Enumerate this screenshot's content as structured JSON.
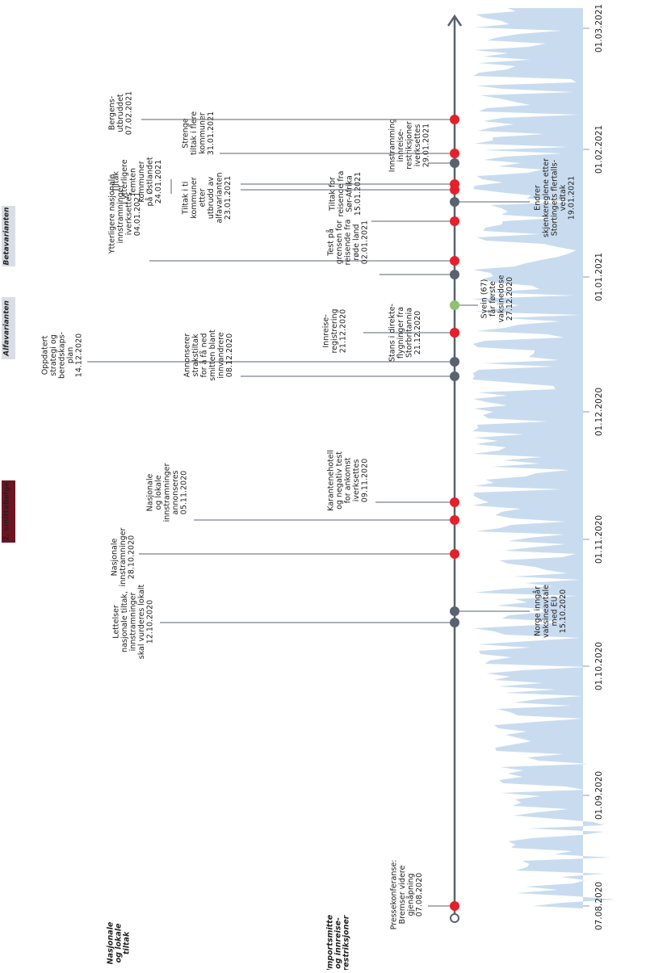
{
  "timeline": {
    "dates": [
      "01.03.2021",
      "01.02.2021",
      "01.01.2021",
      "01.12.2020",
      "01.11.2020",
      "01.10.2020",
      "01.09.2020",
      "07.08.2020"
    ],
    "sections": [
      "Betavarianten",
      "Alfavarianten",
      "2. smittebølge"
    ],
    "rows": [
      {
        "lines": [
          "Nasjonale",
          "og lokale",
          "tiltak"
        ]
      },
      {
        "lines": [
          "Importsmitte",
          "og innreise-",
          "restriksjoner"
        ]
      }
    ],
    "events": [
      {
        "lines": [
          "Pressekonferanse:",
          "Bremser videre",
          "gjenåpning",
          "07.08.2020"
        ]
      },
      {
        "lines": [
          "Lettelser",
          "nasjonale tiltak,",
          "innstramninger",
          "skal vurderes lokalt",
          "12.10.2020"
        ]
      },
      {
        "lines": [
          "Norge inngår",
          "vaksineavtale",
          "med EU",
          "15.10.2020"
        ]
      },
      {
        "lines": [
          "Nasjonale",
          "innstramninger",
          "28.10.2020"
        ]
      },
      {
        "lines": [
          "Nasjonale",
          "og lokale",
          "innstramninger",
          "annonseres",
          "05.11.2020"
        ]
      },
      {
        "lines": [
          "Karantenehotell",
          "og negativ test",
          "for ankomst",
          "iverksettes",
          "09.11.2020"
        ]
      },
      {
        "lines": [
          "Oppdatert",
          "strategi og",
          "beredskaps-",
          "plan",
          "14.12.2020"
        ]
      },
      {
        "lines": [
          "Annonserer",
          "strakstiltak",
          "for å få ned",
          "smitten blant",
          "innvandrere",
          "08.12.2020"
        ]
      },
      {
        "lines": [
          "Innreise-",
          "registrering",
          "21.12.2020"
        ]
      },
      {
        "lines": [
          "Stans i direkte-",
          "flygninger fra",
          "Storbritannia",
          "21.12.2020"
        ]
      },
      {
        "lines": [
          "Svein (67)",
          "får første",
          "vaksinedose",
          "27.12.2020"
        ]
      },
      {
        "lines": [
          "Ytterligere nasjonale",
          "innstramninger",
          "iverksettes",
          "04.01.2021"
        ]
      },
      {
        "lines": [
          "Test på",
          "grensen for",
          "reisende fra",
          "røde land",
          "02.01.2021"
        ]
      },
      {
        "lines": [
          "Tiltak for",
          "reisende fra",
          "Sør-Afrika",
          "15.01.2021"
        ]
      },
      {
        "lines": [
          "Endrer",
          "skjenkereglene etter",
          "Stortingets flertalls-",
          "vedtak",
          "19.01.2021"
        ]
      },
      {
        "lines": [
          "Tiltak i ti",
          "kommuner",
          "etter",
          "utbrudd av",
          "alfavarianten",
          "23.01.2021"
        ]
      },
      {
        "lines": [
          "Tiltak",
          "i ytterligere",
          "femten",
          "kommuner",
          "på Østlandet",
          "24.01.2021"
        ]
      },
      {
        "lines": [
          "Innstramming",
          "innreise-",
          "restriksjoner",
          "iverksettes",
          "29.01.2021"
        ]
      },
      {
        "lines": [
          "Strenge",
          "tiltak i flere",
          "kommuner",
          "31.01.2021"
        ]
      },
      {
        "lines": [
          "Bergens-",
          "utbruddet",
          "07.02.2021"
        ]
      }
    ]
  }
}
